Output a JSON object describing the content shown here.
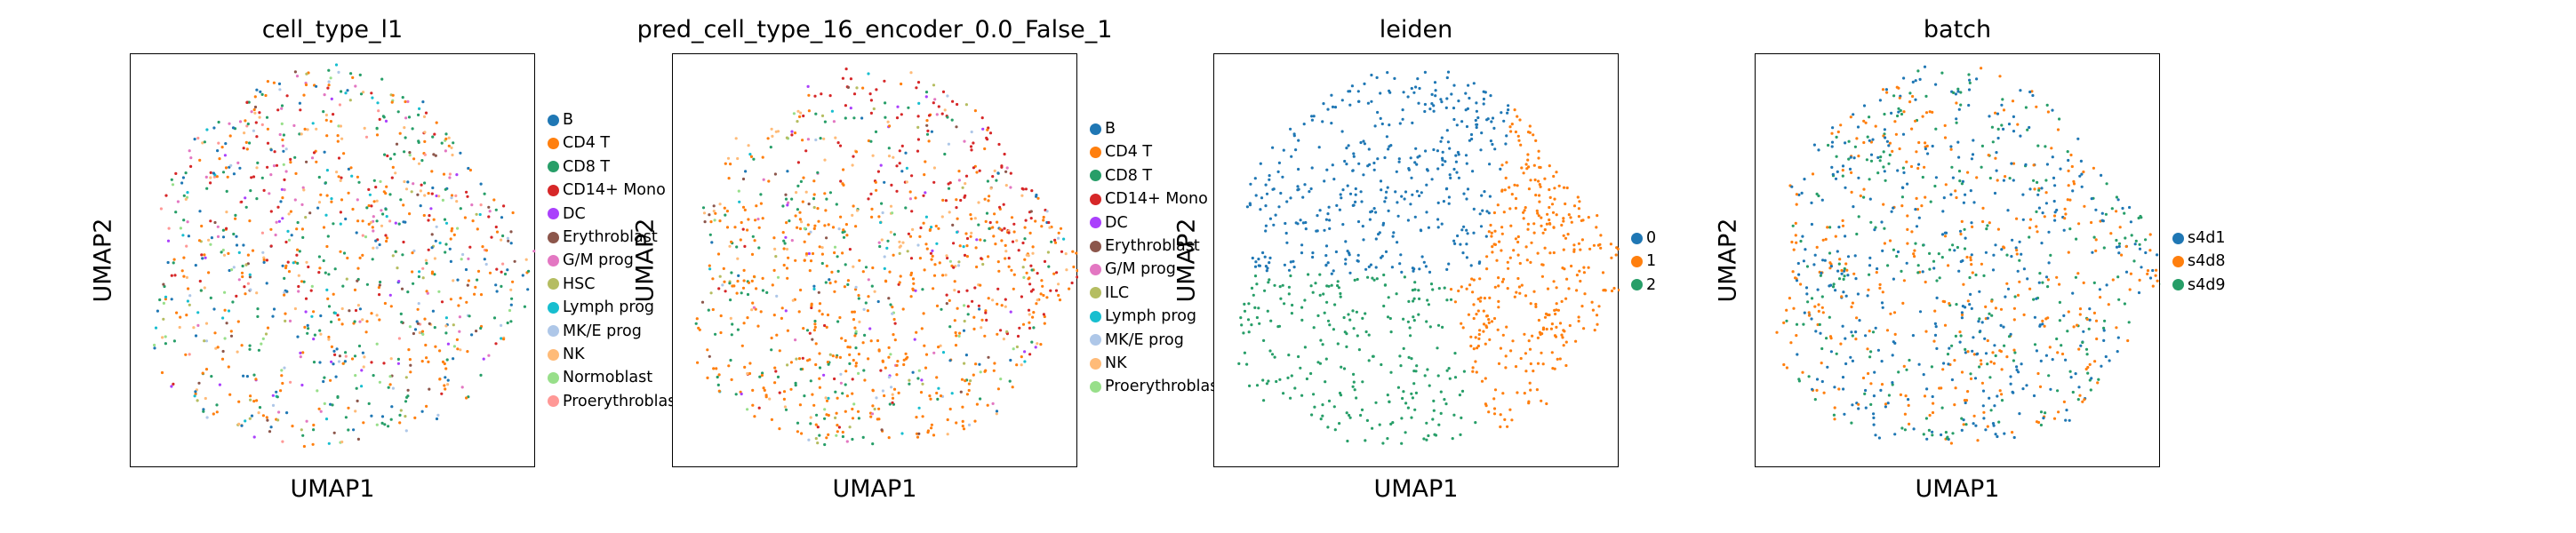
{
  "chart_data": [
    {
      "type": "scatter",
      "title": "cell_type_l1",
      "xlabel": "UMAP1",
      "ylabel": "UMAP2",
      "grid": false,
      "legend_placement": "right",
      "series": [
        {
          "name": "B",
          "color": "#1f77b4",
          "weight": 8,
          "region": "uniform"
        },
        {
          "name": "CD4 T",
          "color": "#ff7f0e",
          "weight": 16,
          "region": "uniform"
        },
        {
          "name": "CD8 T",
          "color": "#279e68",
          "weight": 12,
          "region": "uniform"
        },
        {
          "name": "CD14+ Mono",
          "color": "#d62728",
          "weight": 6,
          "region": "top"
        },
        {
          "name": "DC",
          "color": "#aa40fc",
          "weight": 2,
          "region": "uniform"
        },
        {
          "name": "Erythroblast",
          "color": "#8c564b",
          "weight": 3,
          "region": "uniform"
        },
        {
          "name": "G/M prog",
          "color": "#e377c2",
          "weight": 4,
          "region": "top"
        },
        {
          "name": "HSC",
          "color": "#b5bd61",
          "weight": 2,
          "region": "uniform"
        },
        {
          "name": "Lymph prog",
          "color": "#17becf",
          "weight": 3,
          "region": "uniform"
        },
        {
          "name": "MK/E prog",
          "color": "#aec7e8",
          "weight": 2,
          "region": "uniform"
        },
        {
          "name": "NK",
          "color": "#ffbb78",
          "weight": 6,
          "region": "uniform"
        },
        {
          "name": "Normoblast",
          "color": "#98df8a",
          "weight": 3,
          "region": "uniform"
        },
        {
          "name": "Proerythroblast",
          "color": "#ff9896",
          "weight": 2,
          "region": "uniform"
        }
      ]
    },
    {
      "type": "scatter",
      "title": "pred_cell_type_16_encoder_0.0_False_1",
      "xlabel": "UMAP1",
      "ylabel": "UMAP2",
      "grid": false,
      "legend_placement": "right",
      "series": [
        {
          "name": "B",
          "color": "#1f77b4",
          "weight": 1,
          "region": "uniform"
        },
        {
          "name": "CD4 T",
          "color": "#ff7f0e",
          "weight": 40,
          "region": "bottom"
        },
        {
          "name": "CD8 T",
          "color": "#279e68",
          "weight": 12,
          "region": "left"
        },
        {
          "name": "CD14+ Mono",
          "color": "#d62728",
          "weight": 14,
          "region": "topright"
        },
        {
          "name": "DC",
          "color": "#aa40fc",
          "weight": 1,
          "region": "uniform"
        },
        {
          "name": "Erythroblast",
          "color": "#8c564b",
          "weight": 1,
          "region": "uniform"
        },
        {
          "name": "G/M prog",
          "color": "#e377c2",
          "weight": 1,
          "region": "top"
        },
        {
          "name": "ILC",
          "color": "#b5bd61",
          "weight": 3,
          "region": "uniform"
        },
        {
          "name": "Lymph prog",
          "color": "#17becf",
          "weight": 1,
          "region": "uniform"
        },
        {
          "name": "MK/E prog",
          "color": "#aec7e8",
          "weight": 1,
          "region": "uniform"
        },
        {
          "name": "NK",
          "color": "#ffbb78",
          "weight": 8,
          "region": "top"
        },
        {
          "name": "Proerythroblast",
          "color": "#98df8a",
          "weight": 2,
          "region": "uniform"
        }
      ]
    },
    {
      "type": "scatter",
      "title": "leiden",
      "xlabel": "UMAP1",
      "ylabel": "UMAP2",
      "grid": false,
      "legend_placement": "right",
      "series": [
        {
          "name": "0",
          "color": "#1f77b4",
          "weight": 40,
          "region": "leiden0"
        },
        {
          "name": "1",
          "color": "#ff7f0e",
          "weight": 35,
          "region": "leiden1"
        },
        {
          "name": "2",
          "color": "#279e68",
          "weight": 25,
          "region": "leiden2"
        }
      ]
    },
    {
      "type": "scatter",
      "title": "batch",
      "xlabel": "UMAP1",
      "ylabel": "UMAP2",
      "grid": false,
      "legend_placement": "right",
      "series": [
        {
          "name": "s4d1",
          "color": "#1f77b4",
          "weight": 40,
          "region": "uniform"
        },
        {
          "name": "s4d8",
          "color": "#ff7f0e",
          "weight": 35,
          "region": "uniform"
        },
        {
          "name": "s4d9",
          "color": "#279e68",
          "weight": 25,
          "region": "uniform"
        }
      ]
    }
  ]
}
